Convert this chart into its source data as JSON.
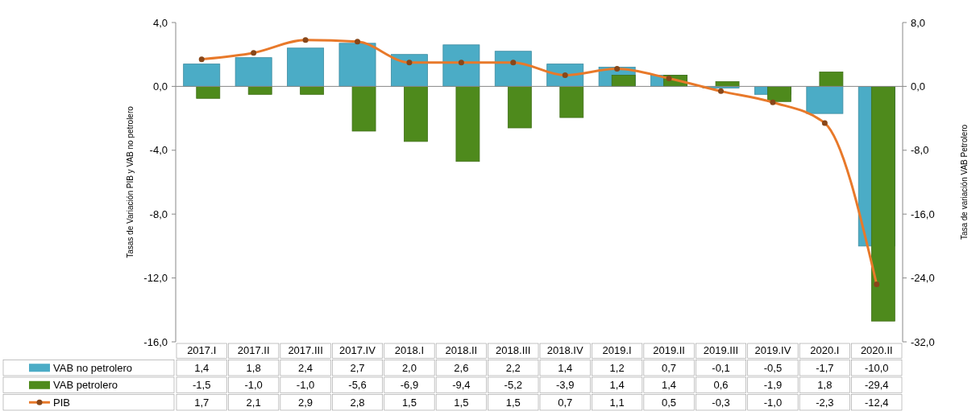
{
  "chart_data": {
    "type": "bar",
    "ylabel": "Tasas de Variación PIB y VAB no petrolero",
    "y2label": "Tasa de variación VAB Petrolero",
    "categories": [
      "2017.I",
      "2017.II",
      "2017.III",
      "2017.IV",
      "2018.I",
      "2018.II",
      "2018.III",
      "2018.IV",
      "2019.I",
      "2019.II",
      "2019.III",
      "2019.IV",
      "2020.I",
      "2020.II"
    ],
    "series": [
      {
        "name": "VAB no petrolero",
        "color": "#4bacc6",
        "values": [
          1.4,
          1.8,
          2.4,
          2.7,
          2.0,
          2.6,
          2.2,
          1.4,
          1.2,
          0.7,
          -0.1,
          -0.5,
          -1.7,
          -10.0
        ],
        "value_labels": [
          "1,4",
          "1,8",
          "2,4",
          "2,7",
          "2,0",
          "2,6",
          "2,2",
          "1,4",
          "1,2",
          "0,7",
          "-0,1",
          "-0,5",
          "-1,7",
          "-10,0"
        ]
      },
      {
        "name": "VAB petrolero",
        "axis": "y2",
        "color": "#4e8a1c",
        "values": [
          -1.5,
          -1.0,
          -1.0,
          -5.6,
          -6.9,
          -9.4,
          -5.2,
          -3.9,
          1.4,
          1.4,
          0.6,
          -1.9,
          1.8,
          -29.4
        ],
        "value_labels": [
          "-1,5",
          "-1,0",
          "-1,0",
          "-5,6",
          "-6,9",
          "-9,4",
          "-5,2",
          "-3,9",
          "1,4",
          "1,4",
          "0,6",
          "-1,9",
          "1,8",
          "-29,4"
        ]
      },
      {
        "name": "PIB",
        "type": "line",
        "color": "#e8792a",
        "marker": "circle",
        "values": [
          1.7,
          2.1,
          2.9,
          2.8,
          1.5,
          1.5,
          1.5,
          0.7,
          1.1,
          0.5,
          -0.3,
          -1.0,
          -2.3,
          -12.4
        ],
        "value_labels": [
          "1,7",
          "2,1",
          "2,9",
          "2,8",
          "1,5",
          "1,5",
          "1,5",
          "0,7",
          "1,1",
          "0,5",
          "-0,3",
          "-1,0",
          "-2,3",
          "-12,4"
        ]
      }
    ],
    "ylim": [
      -16,
      4
    ],
    "yticks": [
      {
        "value": -16,
        "label": "-16,0"
      },
      {
        "value": -12,
        "label": "-12,0"
      },
      {
        "value": -8,
        "label": "-8,0"
      },
      {
        "value": -4,
        "label": "-4,0"
      },
      {
        "value": 0,
        "label": "0,0"
      },
      {
        "value": 4,
        "label": "4,0"
      }
    ],
    "y2lim": [
      -32,
      8
    ],
    "y2ticks": [
      {
        "value": -32,
        "label": "-32,0"
      },
      {
        "value": -24,
        "label": "-24,0"
      },
      {
        "value": -16,
        "label": "-16,0"
      },
      {
        "value": -8,
        "label": "-8,0"
      },
      {
        "value": 0,
        "label": "0,0"
      },
      {
        "value": 8,
        "label": "8,0"
      }
    ],
    "legend": "bottom",
    "data_labels": true
  }
}
